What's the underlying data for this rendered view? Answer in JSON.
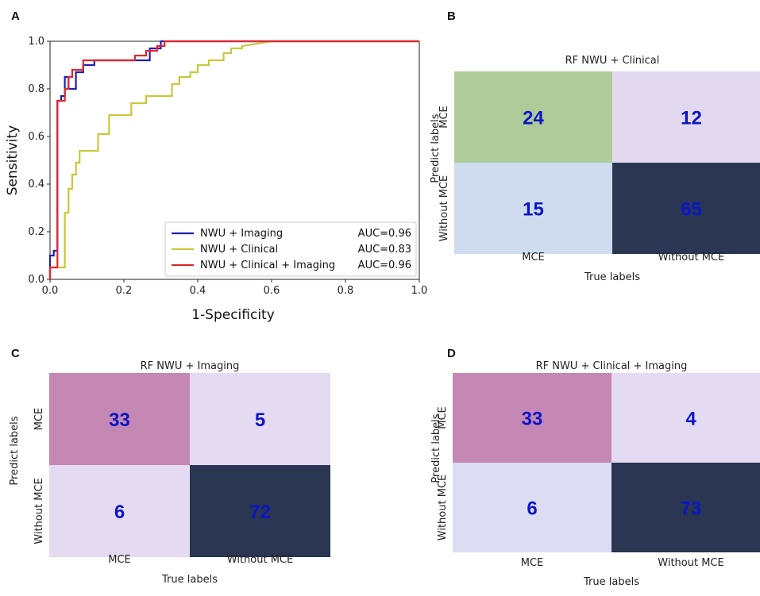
{
  "panels": {
    "a": "A",
    "b": "B",
    "c": "C",
    "d": "D"
  },
  "chart_data": [
    {
      "type": "line",
      "panel": "A",
      "xlabel": "1-Specificity",
      "ylabel": "Sensitivity",
      "xlim": [
        0,
        1
      ],
      "ylim": [
        0,
        1
      ],
      "xticks": [
        "0.0",
        "0.2",
        "0.4",
        "0.6",
        "0.8",
        "1.0"
      ],
      "yticks": [
        "0.0",
        "0.2",
        "0.4",
        "0.6",
        "0.8",
        "1.0"
      ],
      "legend_position": "bottom-right",
      "series": [
        {
          "name": "NWU + Imaging",
          "auc": "AUC=0.96",
          "color": "#1f1fb4",
          "x": [
            0,
            0,
            0.01,
            0.01,
            0.02,
            0.02,
            0.03,
            0.03,
            0.04,
            0.04,
            0.05,
            0.05,
            0.07,
            0.07,
            0.09,
            0.09,
            0.12,
            0.12,
            0.27,
            0.27,
            0.3,
            0.3,
            0.59,
            1.0
          ],
          "y": [
            0,
            0.1,
            0.1,
            0.12,
            0.12,
            0.75,
            0.75,
            0.77,
            0.77,
            0.85,
            0.85,
            0.8,
            0.8,
            0.87,
            0.87,
            0.9,
            0.9,
            0.92,
            0.92,
            0.97,
            0.97,
            1.0,
            1.0,
            1.0
          ]
        },
        {
          "name": "NWU + Clinical",
          "auc": "AUC=0.83",
          "color": "#c8c83c",
          "x": [
            0,
            0,
            0.04,
            0.04,
            0.05,
            0.05,
            0.06,
            0.06,
            0.07,
            0.07,
            0.08,
            0.08,
            0.09,
            0.09,
            0.13,
            0.13,
            0.16,
            0.16,
            0.22,
            0.22,
            0.26,
            0.26,
            0.28,
            0.28,
            0.33,
            0.33,
            0.35,
            0.35,
            0.38,
            0.38,
            0.4,
            0.4,
            0.43,
            0.43,
            0.47,
            0.47,
            0.49,
            0.49,
            0.52,
            0.52,
            0.6,
            1.0
          ],
          "y": [
            0,
            0.05,
            0.05,
            0.28,
            0.28,
            0.38,
            0.38,
            0.44,
            0.44,
            0.49,
            0.49,
            0.54,
            0.54,
            0.54,
            0.54,
            0.61,
            0.61,
            0.69,
            0.69,
            0.74,
            0.74,
            0.77,
            0.77,
            0.77,
            0.77,
            0.82,
            0.82,
            0.85,
            0.85,
            0.87,
            0.87,
            0.9,
            0.9,
            0.92,
            0.92,
            0.95,
            0.95,
            0.97,
            0.97,
            0.98,
            1.0,
            1.0
          ]
        },
        {
          "name": "NWU + Clinical + Imaging",
          "auc": "AUC=0.96",
          "color": "#e0272f",
          "x": [
            0,
            0,
            0.02,
            0.02,
            0.04,
            0.04,
            0.05,
            0.05,
            0.06,
            0.06,
            0.09,
            0.09,
            0.23,
            0.23,
            0.26,
            0.26,
            0.29,
            0.29,
            0.31,
            0.31,
            1.0
          ],
          "y": [
            0,
            0.05,
            0.05,
            0.75,
            0.75,
            0.8,
            0.8,
            0.85,
            0.85,
            0.88,
            0.88,
            0.92,
            0.92,
            0.94,
            0.94,
            0.96,
            0.96,
            0.98,
            0.98,
            1.0,
            1.0
          ]
        }
      ]
    },
    {
      "type": "heatmap",
      "panel": "B",
      "title": "RF NWU + Clinical",
      "xlabel": "True labels",
      "ylabel": "Predict labels",
      "x_categories": [
        "MCE",
        "Without MCE"
      ],
      "y_categories": [
        "MCE",
        "Without MCE"
      ],
      "values": [
        [
          24,
          12
        ],
        [
          15,
          65
        ]
      ],
      "colors": [
        [
          "#afcb99",
          "#e2d9f0"
        ],
        [
          "#cfdcf0",
          "#2a3652"
        ]
      ]
    },
    {
      "type": "heatmap",
      "panel": "C",
      "title": "RF NWU + Imaging",
      "xlabel": "True labels",
      "ylabel": "Predict labels",
      "x_categories": [
        "MCE",
        "Without MCE"
      ],
      "y_categories": [
        "MCE",
        "Without MCE"
      ],
      "values": [
        [
          33,
          5
        ],
        [
          6,
          72
        ]
      ],
      "colors": [
        [
          "#c588b5",
          "#e4daf2"
        ],
        [
          "#e4daf2",
          "#2a3652"
        ]
      ]
    },
    {
      "type": "heatmap",
      "panel": "D",
      "title": "RF NWU + Clinical + Imaging",
      "xlabel": "True labels",
      "ylabel": "Predict labels",
      "x_categories": [
        "MCE",
        "Without MCE"
      ],
      "y_categories": [
        "MCE",
        "Without MCE"
      ],
      "values": [
        [
          33,
          4
        ],
        [
          6,
          73
        ]
      ],
      "colors": [
        [
          "#c588b5",
          "#e4daf2"
        ],
        [
          "#dcdcf3",
          "#2a3652"
        ]
      ]
    }
  ]
}
